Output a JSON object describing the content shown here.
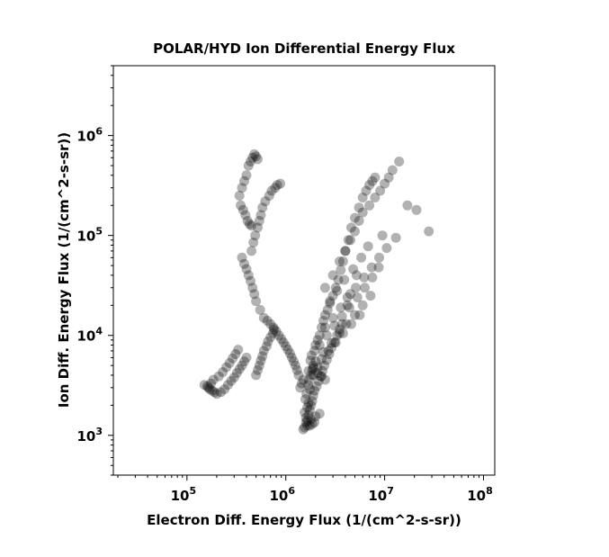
{
  "chart_data": {
    "type": "scatter",
    "title": "POLAR/HYD  Ion Differential Energy Flux",
    "xlabel": "Electron Diff. Energy Flux (1/(cm^2-s-sr))",
    "ylabel": "Ion Diff. Energy Flux (1/(cm^2-s-sr))",
    "xscale": "log",
    "yscale": "log",
    "xlim": [
      18000,
      130000000
    ],
    "ylim": [
      400,
      5000000
    ],
    "xticks": [
      {
        "value": 100000,
        "base": "10",
        "exp": "5"
      },
      {
        "value": 1000000,
        "base": "10",
        "exp": "6"
      },
      {
        "value": 10000000,
        "base": "10",
        "exp": "7"
      },
      {
        "value": 100000000,
        "base": "10",
        "exp": "8"
      }
    ],
    "yticks": [
      {
        "value": 1000,
        "base": "10",
        "exp": "3"
      },
      {
        "value": 10000,
        "base": "10",
        "exp": "4"
      },
      {
        "value": 100000,
        "base": "10",
        "exp": "5"
      },
      {
        "value": 1000000,
        "base": "10",
        "exp": "6"
      }
    ],
    "grid": false,
    "marker": "circle",
    "marker_color": "#000000",
    "marker_alpha": 0.3,
    "series": [
      {
        "x": [
          1600000,
          1550000,
          1650000,
          1700000,
          1580000,
          1620000,
          1750000,
          1680000,
          1720000,
          1800000,
          1850000,
          1900000,
          1780000,
          1820000,
          1950000,
          2000000,
          2100000,
          2200000,
          2300000,
          2400000,
          2500000,
          2650000,
          2800000,
          3000000,
          3200000,
          3400000,
          3600000,
          3800000,
          4000000,
          4300000,
          4600000,
          5000000,
          5500000,
          6000000,
          6500000,
          7000000,
          7500000,
          8000000,
          1650000,
          1700000,
          1750000,
          1800000,
          1850000,
          1900000,
          1950000,
          2050000,
          2150000,
          2250000,
          2350000,
          2450000,
          2600000,
          2750000,
          2900000,
          3100000,
          3300000,
          3500000,
          3700000,
          4200000,
          4500000,
          5200000,
          1400000,
          1450000,
          1500000,
          1350000,
          1300000,
          1250000,
          1200000,
          1150000,
          1100000,
          1050000,
          1000000,
          950000,
          900000,
          850000,
          800000,
          750000,
          700000,
          650000,
          600000,
          550000,
          500000,
          480000,
          460000,
          440000,
          420000,
          400000,
          380000,
          360000,
          450000,
          470000,
          490000,
          520000,
          540000,
          560000,
          580000,
          620000,
          680000,
          720000,
          780000,
          820000,
          880000,
          420000,
          440000,
          460000,
          480000,
          500000,
          520000,
          400000,
          380000,
          360000,
          340000,
          350000,
          370000,
          390000,
          410000,
          430000,
          450000,
          160000,
          170000,
          180000,
          190000,
          200000,
          220000,
          240000,
          260000,
          280000,
          300000,
          320000,
          340000,
          360000,
          380000,
          400000,
          150000,
          165000,
          175000,
          185000,
          210000,
          230000,
          250000,
          270000,
          290000,
          310000,
          330000,
          500000,
          520000,
          540000,
          560000,
          580000,
          600000,
          640000,
          660000,
          700000,
          740000,
          760000,
          2500000,
          3000000,
          3500000,
          4000000,
          4500000,
          5000000,
          5500000,
          6000000,
          7000000,
          8000000,
          9000000,
          10000000,
          11000000,
          12000000,
          14000000,
          17000000,
          21000000,
          28000000,
          2800000,
          3300000,
          3900000,
          4800000,
          5800000,
          6800000,
          9500000,
          2200000,
          2600000,
          3100000,
          3700000,
          4400000,
          5300000,
          6300000,
          7500000,
          8700000,
          2000000,
          2400000,
          2900000,
          3500000,
          4100000,
          5000000,
          6000000,
          7200000,
          1900000,
          2100000,
          2300000,
          2700000,
          3200000,
          3800000,
          4600000,
          5600000,
          2500000,
          3000000,
          3600000,
          4200000,
          5100000,
          6200000,
          7400000,
          8800000,
          10500000,
          13000000,
          1700000,
          1900000,
          2100000,
          2300000,
          2500000,
          1600000,
          1800000,
          2000000,
          2200000,
          1750000,
          1850000,
          1950000,
          1650000,
          1550000,
          1500000
        ],
        "y": [
          1500,
          1700,
          1900,
          2100,
          2300,
          2600,
          2900,
          3200,
          3600,
          4000,
          4500,
          5000,
          5600,
          6300,
          7000,
          8000,
          9000,
          10000,
          12000,
          14000,
          16000,
          18000,
          21000,
          25000,
          30000,
          36000,
          45000,
          55000,
          70000,
          90000,
          120000,
          150000,
          190000,
          240000,
          280000,
          320000,
          350000,
          380000,
          1400,
          1600,
          1800,
          2000,
          2200,
          2500,
          2800,
          3100,
          3500,
          3900,
          4400,
          5000,
          5700,
          6500,
          7500,
          8500,
          10000,
          11500,
          13000,
          20000,
          26000,
          40000,
          3000,
          3300,
          3600,
          4000,
          4500,
          5000,
          5500,
          6000,
          6600,
          7200,
          7800,
          8500,
          9200,
          10000,
          11000,
          12000,
          13000,
          14000,
          15000,
          18000,
          22000,
          26000,
          30000,
          35000,
          40000,
          46000,
          52000,
          60000,
          70000,
          85000,
          100000,
          120000,
          140000,
          160000,
          190000,
          220000,
          250000,
          280000,
          300000,
          320000,
          330000,
          500000,
          550000,
          600000,
          650000,
          620000,
          580000,
          400000,
          350000,
          300000,
          250000,
          200000,
          180000,
          160000,
          140000,
          130000,
          125000,
          3100,
          2900,
          2800,
          2700,
          2600,
          2700,
          2900,
          3200,
          3500,
          3800,
          4200,
          4600,
          5000,
          5500,
          6000,
          3200,
          3000,
          3300,
          3600,
          3900,
          4300,
          4800,
          5300,
          5900,
          6500,
          7200,
          4000,
          4500,
          5000,
          5600,
          6200,
          7000,
          7800,
          8700,
          9600,
          10500,
          11500,
          30000,
          40000,
          55000,
          70000,
          90000,
          110000,
          140000,
          170000,
          200000,
          240000,
          280000,
          330000,
          380000,
          450000,
          550000,
          200000,
          180000,
          110000,
          22000,
          28000,
          36000,
          46000,
          60000,
          78000,
          100000,
          8000,
          10000,
          12500,
          15500,
          19000,
          24000,
          30000,
          38000,
          48000,
          5500,
          6800,
          8400,
          10500,
          13000,
          16000,
          20000,
          25000,
          4000,
          4800,
          5800,
          7000,
          8500,
          10500,
          13000,
          16000,
          12000,
          15000,
          19000,
          24000,
          30000,
          38000,
          48000,
          60000,
          75000,
          95000,
          4400,
          4700,
          4200,
          3900,
          3600,
          1350,
          1450,
          1550,
          1650,
          1250,
          1300,
          1350,
          1250,
          1200,
          1150
        ]
      }
    ]
  }
}
